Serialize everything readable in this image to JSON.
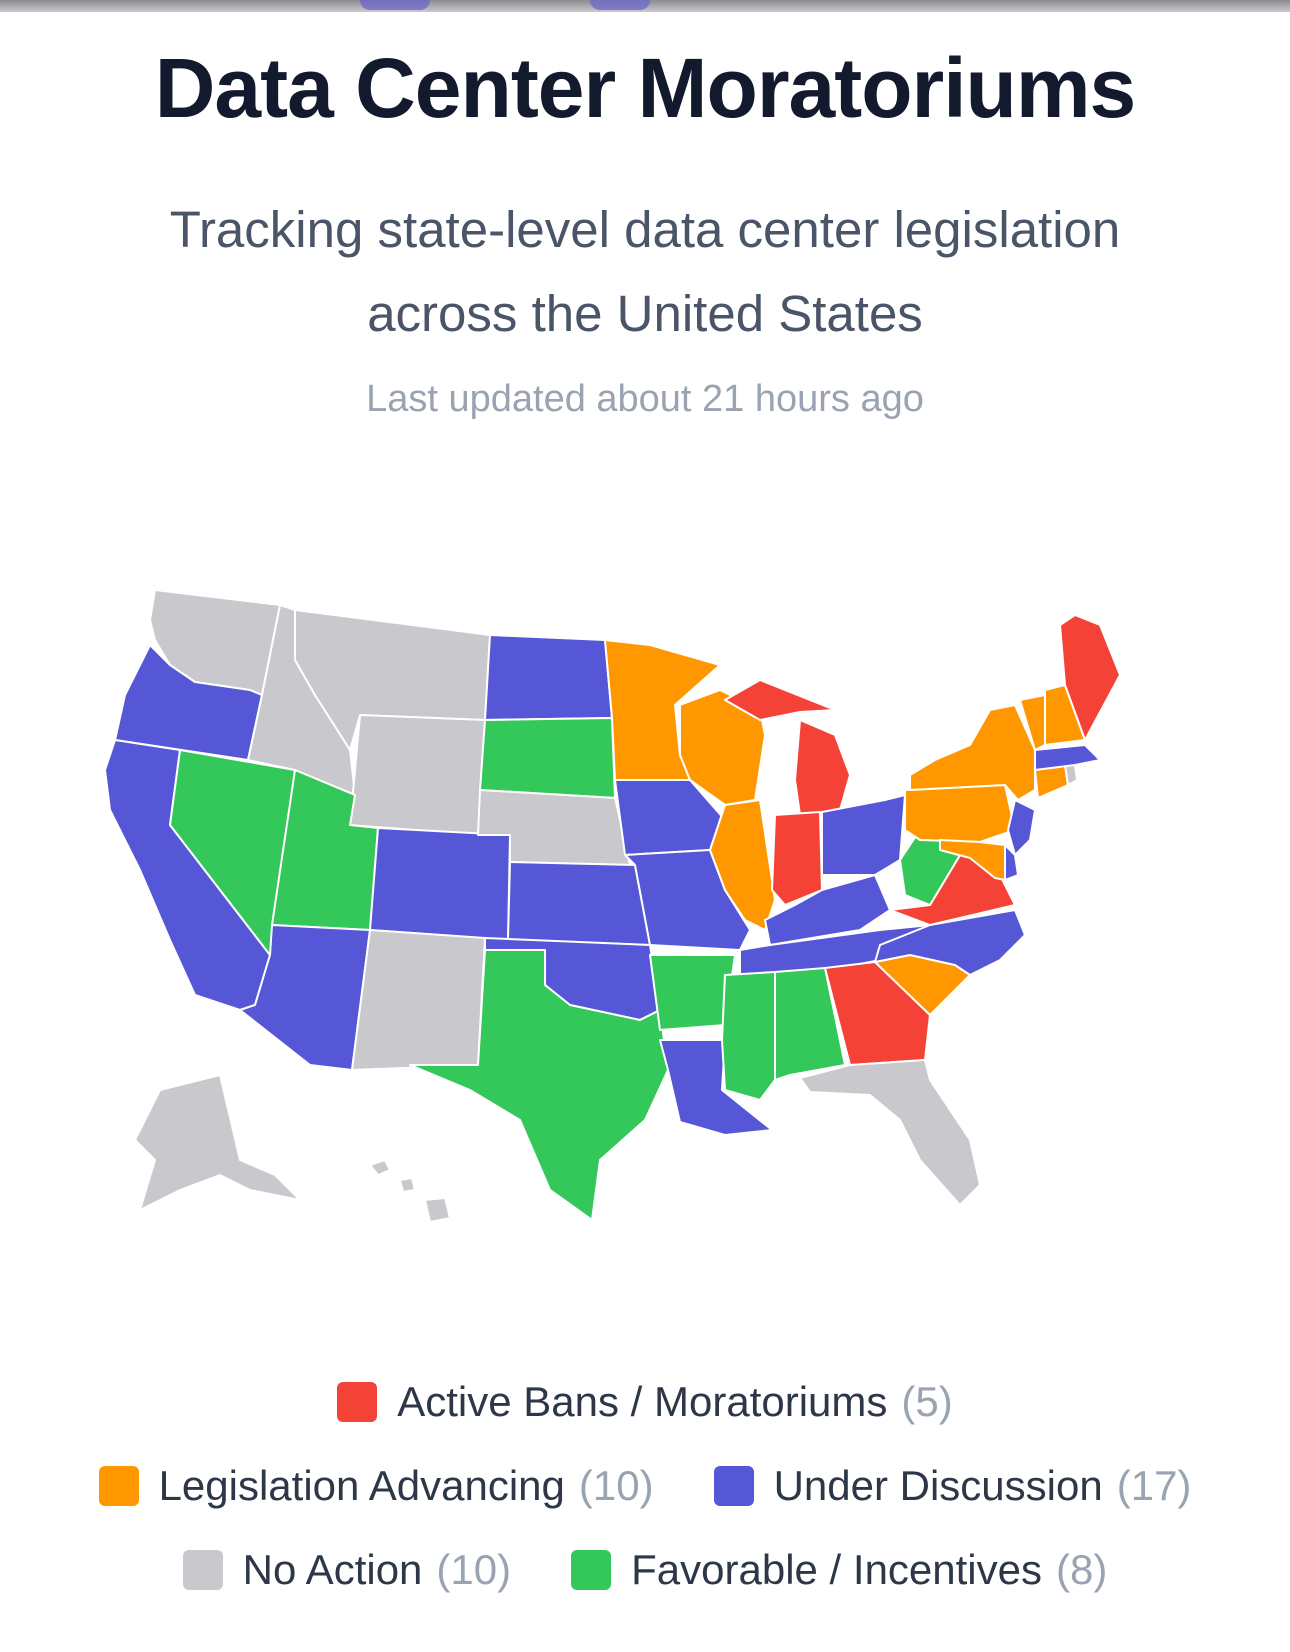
{
  "header": {
    "title": "Data Center Moratoriums",
    "subtitle": "Tracking state-level data center legislation across the United States",
    "updated": "Last updated about 21 hours ago"
  },
  "colors": {
    "ban": "#f44336",
    "advancing": "#ff9800",
    "discussion": "#5557d6",
    "none": "#c8c8cd",
    "favorable": "#34c759"
  },
  "legend": [
    {
      "key": "ban",
      "label": "Active Bans / Moratoriums",
      "count": "(5)"
    },
    {
      "key": "advancing",
      "label": "Legislation Advancing",
      "count": "(10)"
    },
    {
      "key": "discussion",
      "label": "Under Discussion",
      "count": "(17)"
    },
    {
      "key": "none",
      "label": "No Action",
      "count": "(10)"
    },
    {
      "key": "favorable",
      "label": "Favorable / Incentives",
      "count": "(8)"
    }
  ],
  "states": {
    "WA": "none",
    "OR": "discussion",
    "CA": "discussion",
    "NV": "favorable",
    "ID": "none",
    "MT": "none",
    "WY": "none",
    "UT": "favorable",
    "AZ": "discussion",
    "CO": "discussion",
    "NM": "none",
    "ND": "discussion",
    "SD": "favorable",
    "NE": "none",
    "KS": "discussion",
    "OK": "discussion",
    "TX": "favorable",
    "MN": "advancing",
    "IA": "discussion",
    "MO": "discussion",
    "AR": "favorable",
    "LA": "discussion",
    "WI": "advancing",
    "IL": "advancing",
    "MI": "ban",
    "IN": "ban",
    "OH": "discussion",
    "KY": "discussion",
    "TN": "discussion",
    "MS": "favorable",
    "AL": "favorable",
    "GA": "ban",
    "FL": "none",
    "SC": "advancing",
    "NC": "discussion",
    "VA": "ban",
    "WV": "favorable",
    "PA": "advancing",
    "NY": "advancing",
    "NJ": "discussion",
    "DE": "discussion",
    "MD": "advancing",
    "CT": "advancing",
    "RI": "none",
    "MA": "discussion",
    "VT": "advancing",
    "NH": "advancing",
    "ME": "ban",
    "AK": "none",
    "HI": "none"
  }
}
